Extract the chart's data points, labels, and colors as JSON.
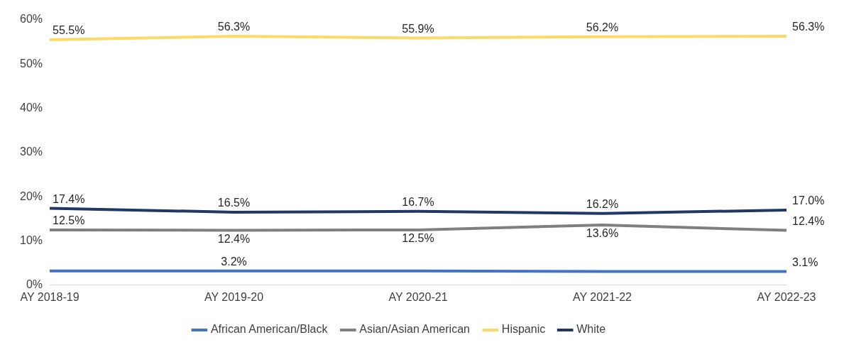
{
  "chart_data": {
    "type": "line",
    "categories": [
      "AY 2018-19",
      "AY 2019-20",
      "AY 2020-21",
      "AY 2021-22",
      "AY 2022-23"
    ],
    "ylim": [
      0,
      60
    ],
    "yticks": [
      {
        "value": 0,
        "label": "0%"
      },
      {
        "value": 10,
        "label": "10%"
      },
      {
        "value": 20,
        "label": "20%"
      },
      {
        "value": 30,
        "label": "30%"
      },
      {
        "value": 40,
        "label": "40%"
      },
      {
        "value": 50,
        "label": "50%"
      },
      {
        "value": 60,
        "label": "60%"
      }
    ],
    "grid": false,
    "legend": "bottom",
    "marker": "none",
    "line_style": "solid",
    "series": [
      {
        "name": "African American/Black",
        "color": "#4472c4",
        "values": [
          3.2,
          3.2,
          3.2,
          3.1,
          3.1
        ],
        "value_labels": [
          null,
          "3.2%",
          null,
          null,
          "3.1%"
        ]
      },
      {
        "name": "Asian/Asian American",
        "color": "#7f7f7f",
        "values": [
          12.5,
          12.4,
          12.5,
          13.6,
          12.4
        ],
        "value_labels": [
          "12.5%",
          "12.4%",
          "12.5%",
          "13.6%",
          "12.4%"
        ]
      },
      {
        "name": "Hispanic",
        "color": "#ffd966",
        "values": [
          55.5,
          56.3,
          55.9,
          56.2,
          56.3
        ],
        "value_labels": [
          "55.5%",
          "56.3%",
          "55.9%",
          "56.2%",
          "56.3%"
        ]
      },
      {
        "name": "White",
        "color": "#203864",
        "values": [
          17.4,
          16.5,
          16.7,
          16.2,
          17.0
        ],
        "value_labels": [
          "17.4%",
          "16.5%",
          "16.7%",
          "16.2%",
          "17.0%"
        ]
      }
    ]
  }
}
